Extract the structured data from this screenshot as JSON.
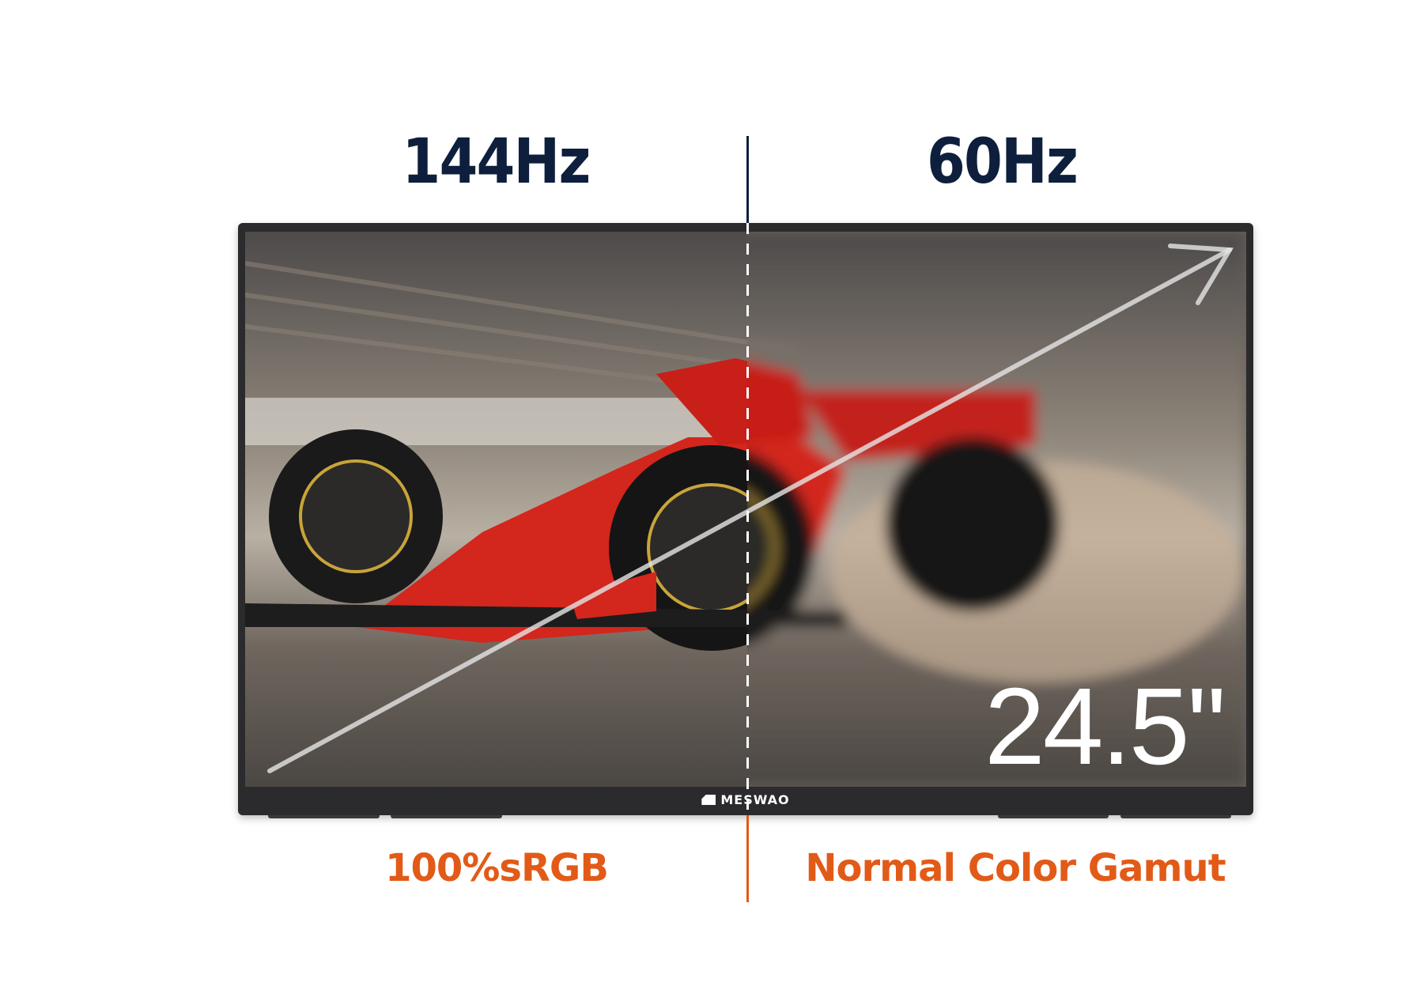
{
  "header": {
    "left_label": "144Hz",
    "right_label": "60Hz"
  },
  "monitor": {
    "brand": "MESWAO",
    "size_label": "24.5\""
  },
  "footer": {
    "left_label": "100%sRGB",
    "right_label": "Normal Color Gamut"
  },
  "colors": {
    "navy": "#0d1f3c",
    "orange": "#e25a17",
    "bezel": "#2b2b2d",
    "car_red": "#d3261d"
  },
  "icons": [
    "meswao-logo-icon",
    "diagonal-arrow-icon"
  ]
}
